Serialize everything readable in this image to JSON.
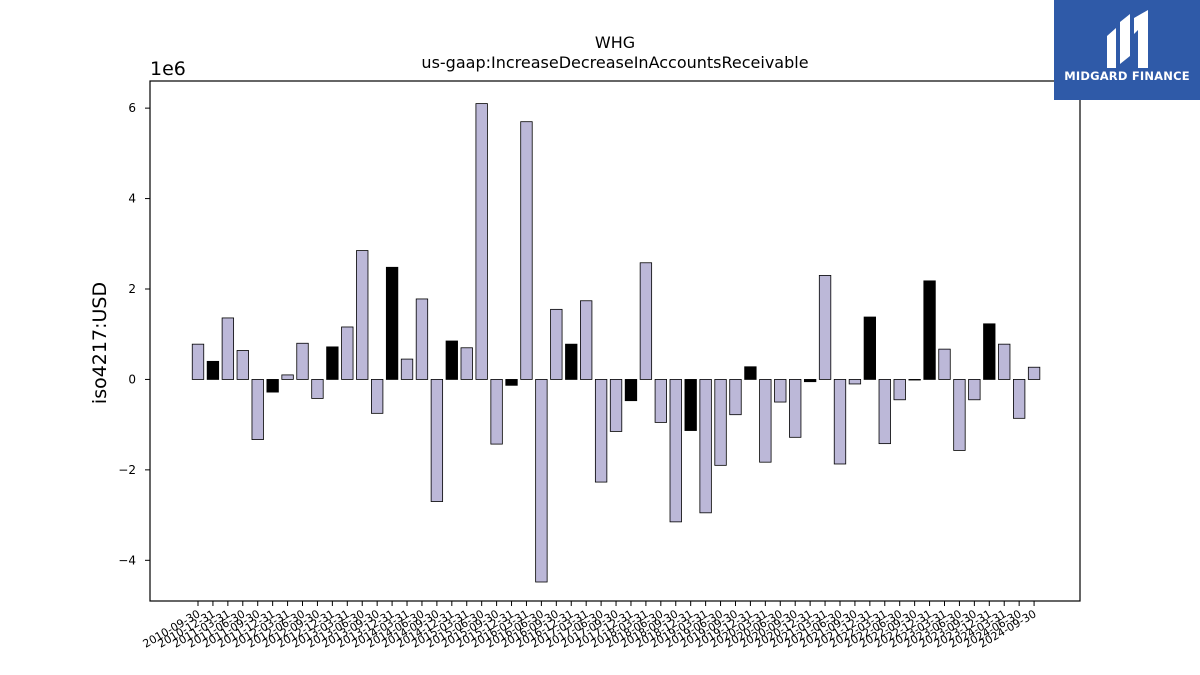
{
  "brand": {
    "name": "MIDGARD FINANCE",
    "bg_color": "#2f5aa8",
    "mark_icon": "midgard-m-logo-icon"
  },
  "chart_data": {
    "type": "bar",
    "title": "WHG",
    "subtitle": "us-gaap:IncreaseDecreaseInAccountsReceivable",
    "ylabel": "iso4217:USD",
    "xlabel": "",
    "y_scale_label": "1e6",
    "y_multiplier": 1000000,
    "ylim": [
      -4.9,
      6.6
    ],
    "yticks": [
      -4,
      -2,
      0,
      2,
      4,
      6
    ],
    "colors": {
      "default": "#bcb8d8",
      "highlight": "#000000"
    },
    "categories": [
      "2010-09-30",
      "2010-12-31",
      "2011-03-31",
      "2011-06-30",
      "2011-09-30",
      "2011-12-31",
      "2012-03-31",
      "2012-06-30",
      "2012-09-30",
      "2012-12-31",
      "2013-03-31",
      "2013-06-30",
      "2013-09-30",
      "2013-12-31",
      "2014-03-31",
      "2014-06-30",
      "2014-09-30",
      "2014-12-31",
      "2015-03-31",
      "2015-06-30",
      "2015-09-30",
      "2015-12-31",
      "2016-03-31",
      "2016-06-30",
      "2016-09-30",
      "2016-12-31",
      "2017-03-31",
      "2017-06-30",
      "2017-09-30",
      "2017-12-31",
      "2018-03-31",
      "2018-06-30",
      "2018-09-30",
      "2018-12-31",
      "2019-03-31",
      "2019-06-30",
      "2019-09-30",
      "2019-12-31",
      "2020-03-31",
      "2020-06-30",
      "2020-09-30",
      "2020-12-31",
      "2021-03-31",
      "2021-06-30",
      "2021-09-30",
      "2021-12-31",
      "2022-03-31",
      "2022-06-30",
      "2022-09-30",
      "2022-12-31",
      "2023-03-31",
      "2023-06-30",
      "2023-09-30",
      "2023-12-31",
      "2024-03-31",
      "2024-06-30",
      "2024-09-30"
    ],
    "values": [
      0.78,
      0.4,
      1.36,
      0.64,
      -1.33,
      -0.28,
      0.1,
      0.8,
      -0.42,
      0.72,
      1.16,
      2.85,
      -0.75,
      2.48,
      0.45,
      1.78,
      -2.7,
      0.85,
      0.7,
      6.1,
      -1.43,
      -0.13,
      5.7,
      -4.48,
      1.55,
      0.78,
      1.74,
      -2.27,
      -1.15,
      -0.47,
      2.58,
      -0.95,
      -3.15,
      -1.13,
      -2.95,
      -1.9,
      -0.78,
      0.28,
      -1.83,
      -0.5,
      -1.28,
      -0.05,
      2.3,
      -1.87,
      -0.1,
      1.38,
      -1.42,
      -0.45,
      0.0,
      2.18,
      0.67,
      -1.57,
      -0.45,
      1.23,
      0.78,
      -0.86,
      0.27
    ],
    "highlight": [
      false,
      true,
      false,
      false,
      false,
      true,
      false,
      false,
      false,
      true,
      false,
      false,
      false,
      true,
      false,
      false,
      false,
      true,
      false,
      false,
      false,
      true,
      false,
      false,
      false,
      true,
      false,
      false,
      false,
      true,
      false,
      false,
      false,
      true,
      false,
      false,
      false,
      true,
      false,
      false,
      false,
      true,
      false,
      false,
      false,
      true,
      false,
      false,
      false,
      true,
      false,
      false,
      false,
      true,
      false,
      false,
      false
    ]
  }
}
